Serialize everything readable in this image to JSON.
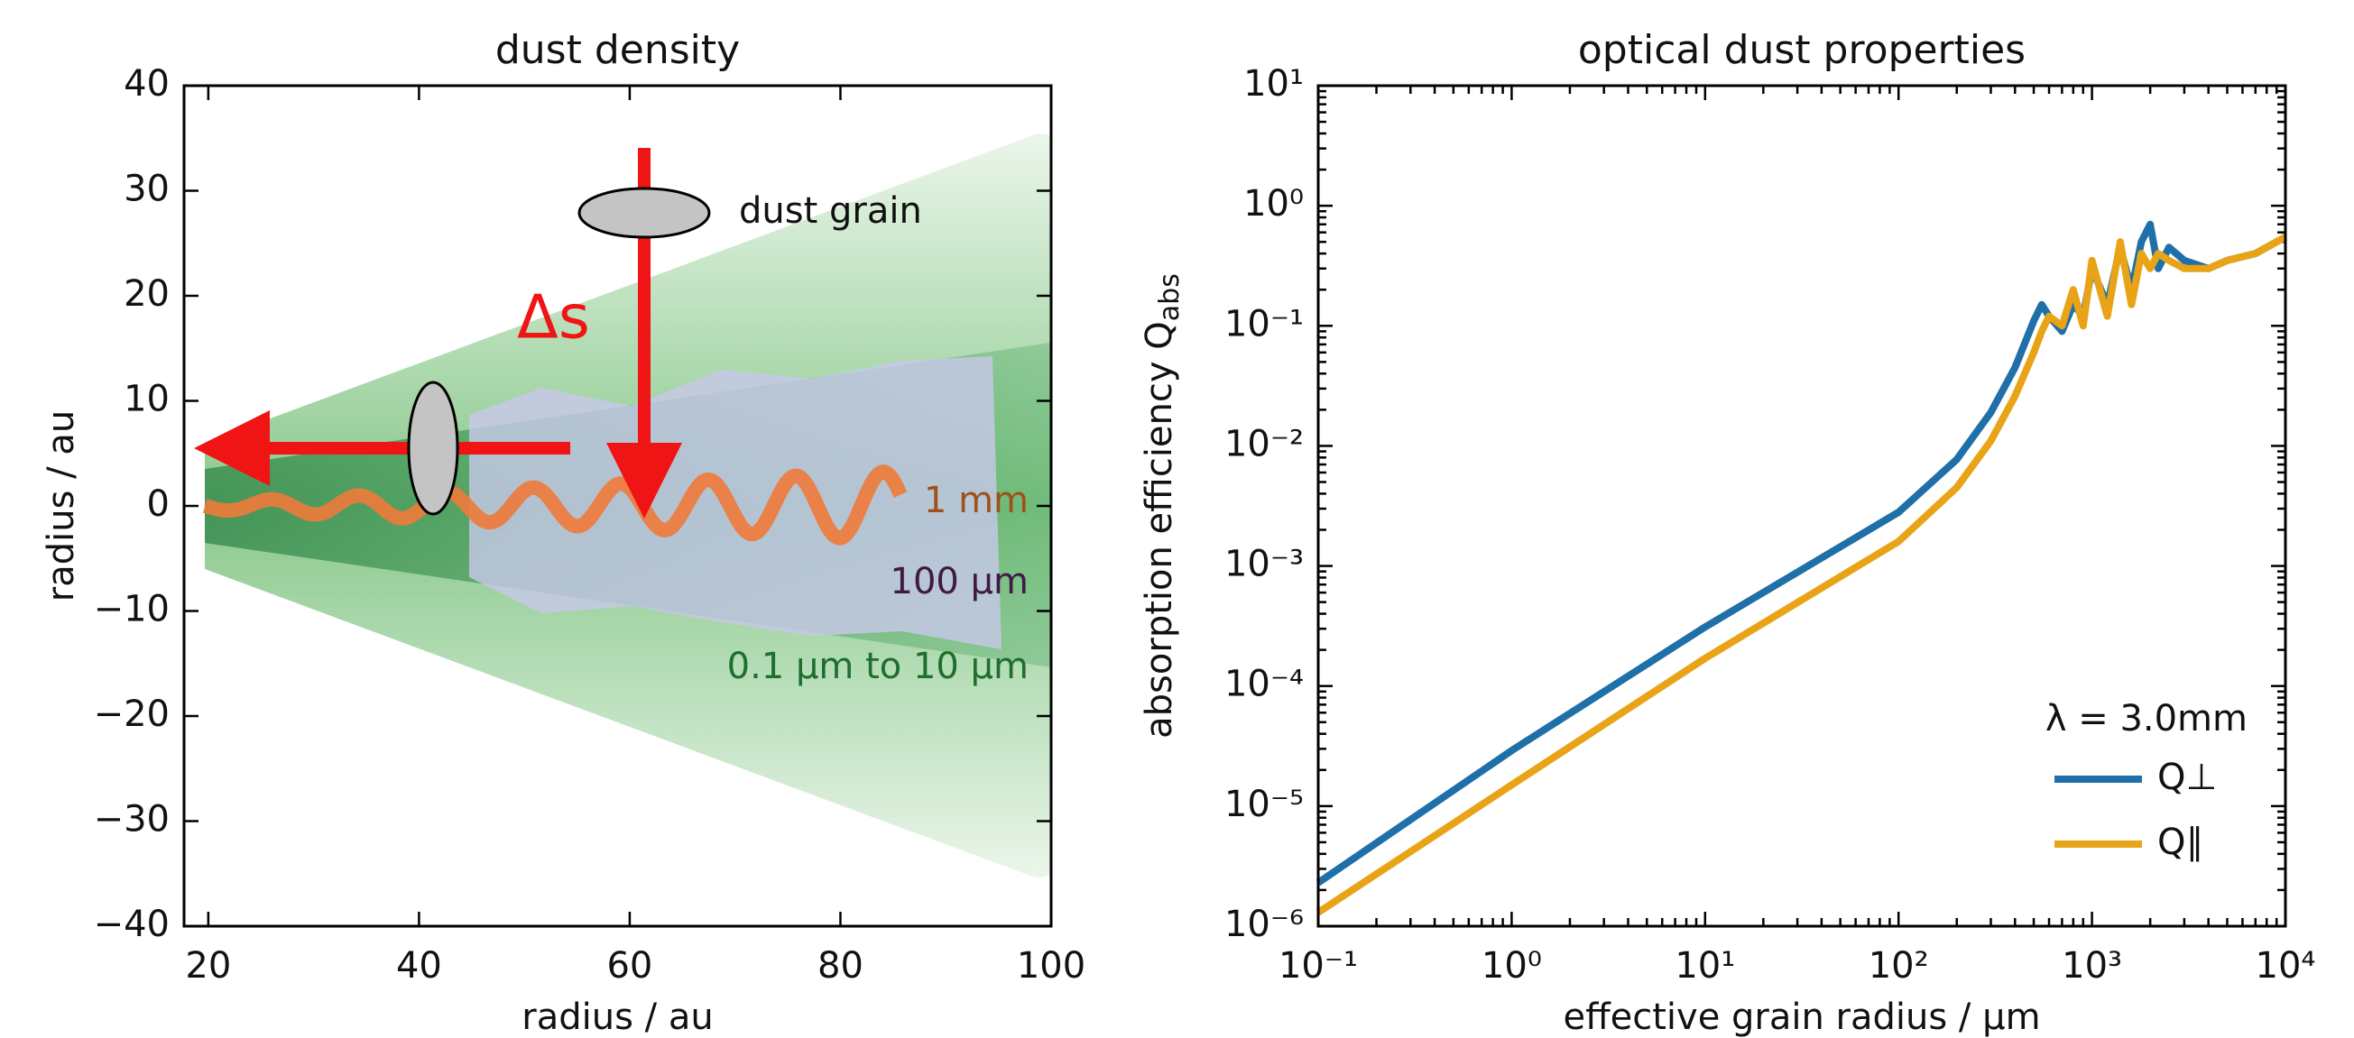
{
  "chart_data": [
    {
      "type": "heatmap",
      "title": "dust density",
      "x_label": "radius / au",
      "y_label": "radius / au",
      "xlim": [
        17.7,
        100
      ],
      "xticks": [
        20,
        40,
        60,
        80,
        100
      ],
      "ylim": [
        -40,
        40
      ],
      "yticks": [
        {
          "value": -40,
          "label": "−40"
        },
        {
          "value": -30,
          "label": "−30"
        },
        {
          "value": -20,
          "label": "−20"
        },
        {
          "value": -10,
          "label": "−10"
        },
        0,
        10,
        20,
        30,
        40
      ],
      "annotations": [
        "dust grain",
        "Δs",
        "1 mm",
        "100 µm",
        "0.1 µm to 10 µm"
      ]
    },
    {
      "type": "line",
      "title": "optical dust properties",
      "x_label": "effective grain radius / µm",
      "y_label": "absorption efficiency Q",
      "y_label_sub": "abs",
      "log_x": true,
      "log_y": true,
      "xlim": [
        0.1,
        10000
      ],
      "xticks": [
        {
          "value": 0.1,
          "label": "10⁻¹"
        },
        {
          "value": 1,
          "label": "10⁰"
        },
        {
          "value": 10,
          "label": "10¹"
        },
        {
          "value": 100,
          "label": "10²"
        },
        {
          "value": 1000,
          "label": "10³"
        },
        {
          "value": 10000,
          "label": "10⁴"
        }
      ],
      "ylim": [
        1e-06,
        10
      ],
      "yticks": [
        {
          "value": 1e-06,
          "label": "10⁻⁶"
        },
        {
          "value": 1e-05,
          "label": "10⁻⁵"
        },
        {
          "value": 0.0001,
          "label": "10⁻⁴"
        },
        {
          "value": 0.001,
          "label": "10⁻³"
        },
        {
          "value": 0.01,
          "label": "10⁻²"
        },
        {
          "value": 0.1,
          "label": "10⁻¹"
        },
        {
          "value": 1,
          "label": "10⁰"
        },
        {
          "value": 10,
          "label": "10¹"
        }
      ],
      "legend": "lower right",
      "legend_title": "λ = 3.0mm",
      "x": [
        0.1,
        1,
        10,
        100,
        200,
        300,
        400,
        500,
        550,
        600,
        700,
        800,
        900,
        1000,
        1200,
        1400,
        1600,
        1800,
        2000,
        2200,
        2500,
        3000,
        4000,
        5000,
        7000,
        10000
      ],
      "series": [
        {
          "name": "Q⊥",
          "color": "#1f6fa8",
          "values": [
            2.3e-06,
            2.9e-05,
            0.00031,
            0.0028,
            0.0077,
            0.019,
            0.045,
            0.11,
            0.15,
            0.12,
            0.09,
            0.15,
            0.12,
            0.3,
            0.15,
            0.45,
            0.2,
            0.5,
            0.7,
            0.3,
            0.45,
            0.35,
            0.3,
            0.35,
            0.4,
            0.55
          ]
        },
        {
          "name": "Q∥",
          "color": "#e8a317",
          "values": [
            1.3e-06,
            1.5e-05,
            0.00017,
            0.0016,
            0.0045,
            0.011,
            0.026,
            0.06,
            0.09,
            0.12,
            0.1,
            0.2,
            0.1,
            0.35,
            0.12,
            0.5,
            0.15,
            0.4,
            0.3,
            0.4,
            0.35,
            0.3,
            0.3,
            0.35,
            0.4,
            0.55
          ]
        }
      ]
    }
  ]
}
